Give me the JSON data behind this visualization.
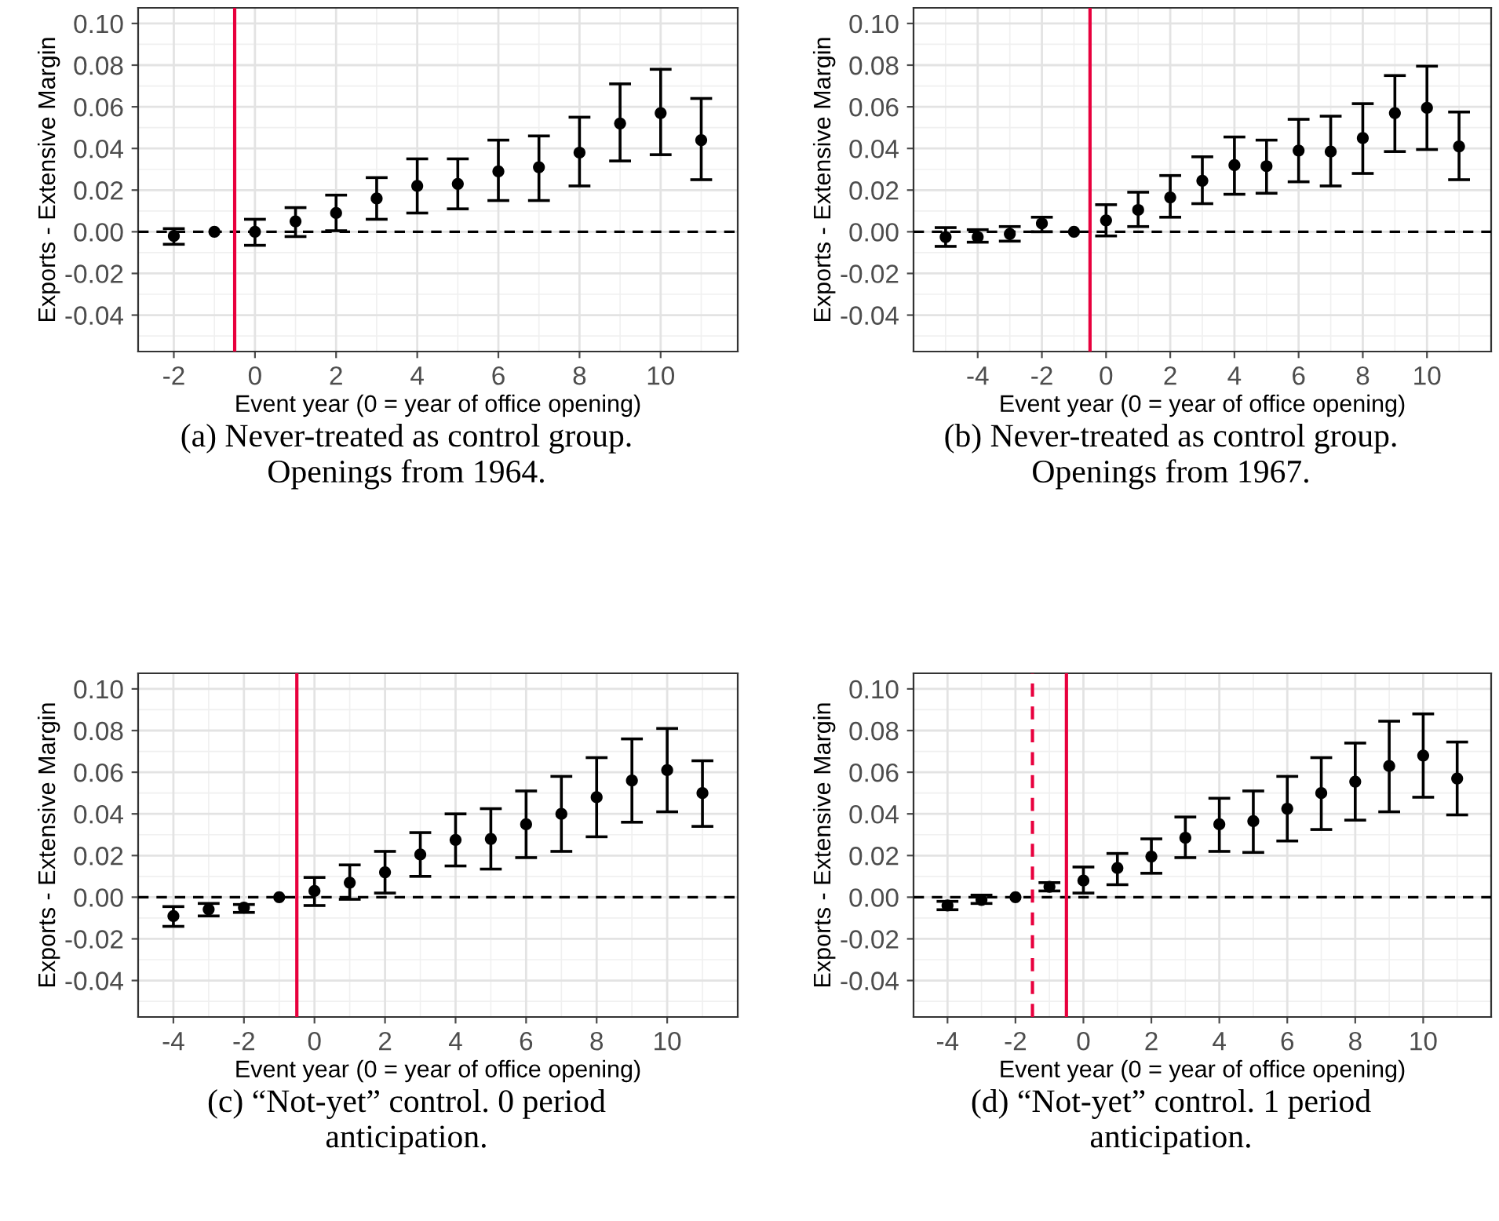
{
  "chart_data": [
    {
      "type": "scatter",
      "title": "(a) Never-treated as control group.\nOpenings from 1964.",
      "xlabel": "Event year (0 = year of office opening)",
      "ylabel": "Exports - Extensive Margin",
      "color": "#000000",
      "marker": "circle",
      "grid": true,
      "x": [
        -2,
        -1,
        0,
        1,
        2,
        3,
        4,
        5,
        6,
        7,
        8,
        9,
        10,
        11
      ],
      "values": [
        -0.002,
        0,
        0,
        0.005,
        0.009,
        0.016,
        0.022,
        0.023,
        0.029,
        0.031,
        0.038,
        0.052,
        0.057,
        0.044
      ],
      "errors": [
        [
          -0.006,
          0.0015
        ],
        null,
        [
          -0.0065,
          0.006
        ],
        [
          -0.0023,
          0.0116
        ],
        [
          0.0005,
          0.0176
        ],
        [
          0.006,
          0.026
        ],
        [
          0.009,
          0.035
        ],
        [
          0.011,
          0.035
        ],
        [
          0.015,
          0.044
        ],
        [
          0.015,
          0.046
        ],
        [
          0.022,
          0.055
        ],
        [
          0.034,
          0.071
        ],
        [
          0.037,
          0.078
        ],
        [
          0.025,
          0.064
        ]
      ],
      "xlim": [
        -2.88,
        11.9
      ],
      "xticks": [
        -2,
        0,
        2,
        4,
        6,
        8,
        10
      ],
      "ylim": [
        -0.0575,
        0.1075
      ],
      "yticks": [
        {
          "value": -0.04,
          "label": "-0.04"
        },
        {
          "value": -0.02,
          "label": "-0.02"
        },
        {
          "value": 0,
          "label": "0.00"
        },
        {
          "value": 0.02,
          "label": "0.02"
        },
        {
          "value": 0.04,
          "label": "0.04"
        },
        {
          "value": 0.06,
          "label": "0.06"
        },
        {
          "value": 0.08,
          "label": "0.08"
        },
        {
          "value": 0.1,
          "label": "0.10"
        }
      ],
      "ref_lines": [
        {
          "axis": "y",
          "value": 0,
          "color": "#000000",
          "line_style": "dashed"
        },
        {
          "axis": "x",
          "value": -0.5,
          "color": "#e8003d",
          "line_style": "solid"
        }
      ]
    },
    {
      "type": "scatter",
      "title": "(b) Never-treated as control group.\nOpenings from 1967.",
      "xlabel": "Event year (0 = year of office opening)",
      "ylabel": "Exports - Extensive Margin",
      "color": "#000000",
      "marker": "circle",
      "grid": true,
      "x": [
        -5,
        -4,
        -3,
        -2,
        -1,
        0,
        1,
        2,
        3,
        4,
        5,
        6,
        7,
        8,
        9,
        10,
        11
      ],
      "values": [
        -0.0025,
        -0.0025,
        -0.001,
        0.004,
        0,
        0.0055,
        0.0105,
        0.0165,
        0.0245,
        0.032,
        0.0315,
        0.039,
        0.0385,
        0.045,
        0.057,
        0.0595,
        0.041
      ],
      "errors": [
        [
          -0.007,
          0.002
        ],
        [
          -0.005,
          0.001
        ],
        [
          -0.0045,
          0.0025
        ],
        [
          0.0,
          0.007
        ],
        null,
        [
          -0.002,
          0.013
        ],
        [
          0.0025,
          0.019
        ],
        [
          0.007,
          0.027
        ],
        [
          0.0135,
          0.036
        ],
        [
          0.018,
          0.0455
        ],
        [
          0.0185,
          0.044
        ],
        [
          0.024,
          0.054
        ],
        [
          0.022,
          0.0555
        ],
        [
          0.028,
          0.0615
        ],
        [
          0.0385,
          0.075
        ],
        [
          0.0395,
          0.0795
        ],
        [
          0.025,
          0.0575
        ]
      ],
      "xlim": [
        -6.0,
        12.0
      ],
      "xticks": [
        -4,
        -2,
        0,
        2,
        4,
        6,
        8,
        10
      ],
      "ylim": [
        -0.0575,
        0.1075
      ],
      "yticks": [
        {
          "value": -0.04,
          "label": "-0.04"
        },
        {
          "value": -0.02,
          "label": "-0.02"
        },
        {
          "value": 0,
          "label": "0.00"
        },
        {
          "value": 0.02,
          "label": "0.02"
        },
        {
          "value": 0.04,
          "label": "0.04"
        },
        {
          "value": 0.06,
          "label": "0.06"
        },
        {
          "value": 0.08,
          "label": "0.08"
        },
        {
          "value": 0.1,
          "label": "0.10"
        }
      ],
      "ref_lines": [
        {
          "axis": "y",
          "value": 0,
          "color": "#000000",
          "line_style": "dashed"
        },
        {
          "axis": "x",
          "value": -0.5,
          "color": "#e8003d",
          "line_style": "solid"
        }
      ]
    },
    {
      "type": "scatter",
      "title": "(c) “Not-yet” control. 0 period\nanticipation.",
      "xlabel": "Event year (0 = year of office opening)",
      "ylabel": "Exports - Extensive Margin",
      "color": "#000000",
      "marker": "circle",
      "grid": true,
      "x": [
        -4,
        -3,
        -2,
        -1,
        0,
        1,
        2,
        3,
        4,
        5,
        6,
        7,
        8,
        9,
        10,
        11
      ],
      "values": [
        -0.009,
        -0.0058,
        -0.005,
        0,
        0.003,
        0.007,
        0.012,
        0.0205,
        0.0275,
        0.028,
        0.035,
        0.04,
        0.048,
        0.056,
        0.061,
        0.05
      ],
      "errors": [
        [
          -0.014,
          -0.0045
        ],
        [
          -0.009,
          -0.003
        ],
        [
          -0.0073,
          -0.0035
        ],
        null,
        [
          -0.004,
          0.0095
        ],
        [
          -0.001,
          0.0155
        ],
        [
          0.002,
          0.022
        ],
        [
          0.01,
          0.031
        ],
        [
          0.015,
          0.04
        ],
        [
          0.0135,
          0.0425
        ],
        [
          0.019,
          0.051
        ],
        [
          0.022,
          0.058
        ],
        [
          0.029,
          0.067
        ],
        [
          0.036,
          0.076
        ],
        [
          0.041,
          0.081
        ],
        [
          0.034,
          0.0655
        ]
      ],
      "xlim": [
        -5.0,
        12.0
      ],
      "xticks": [
        -4,
        -2,
        0,
        2,
        4,
        6,
        8,
        10
      ],
      "ylim": [
        -0.0575,
        0.1075
      ],
      "yticks": [
        {
          "value": -0.04,
          "label": "-0.04"
        },
        {
          "value": -0.02,
          "label": "-0.02"
        },
        {
          "value": 0,
          "label": "0.00"
        },
        {
          "value": 0.02,
          "label": "0.02"
        },
        {
          "value": 0.04,
          "label": "0.04"
        },
        {
          "value": 0.06,
          "label": "0.06"
        },
        {
          "value": 0.08,
          "label": "0.08"
        },
        {
          "value": 0.1,
          "label": "0.10"
        }
      ],
      "ref_lines": [
        {
          "axis": "y",
          "value": 0,
          "color": "#000000",
          "line_style": "dashed"
        },
        {
          "axis": "x",
          "value": -0.5,
          "color": "#e8003d",
          "line_style": "solid"
        }
      ]
    },
    {
      "type": "scatter",
      "title": "(d) “Not-yet” control. 1 period\nanticipation.",
      "xlabel": "Event year (0 = year of office opening)",
      "ylabel": "Exports - Extensive Margin",
      "color": "#000000",
      "marker": "circle",
      "grid": true,
      "x": [
        -4,
        -3,
        -2,
        -1,
        0,
        1,
        2,
        3,
        4,
        5,
        6,
        7,
        8,
        9,
        10,
        11
      ],
      "values": [
        -0.004,
        -0.0013,
        0,
        0.005,
        0.008,
        0.014,
        0.0195,
        0.0285,
        0.035,
        0.0365,
        0.0425,
        0.05,
        0.0555,
        0.063,
        0.068,
        0.057
      ],
      "errors": [
        [
          -0.006,
          -0.002
        ],
        [
          -0.003,
          0.001
        ],
        null,
        [
          0.003,
          0.007
        ],
        [
          0.002,
          0.0145
        ],
        [
          0.006,
          0.021
        ],
        [
          0.0115,
          0.028
        ],
        [
          0.019,
          0.0385
        ],
        [
          0.022,
          0.0475
        ],
        [
          0.0215,
          0.051
        ],
        [
          0.027,
          0.058
        ],
        [
          0.0325,
          0.067
        ],
        [
          0.037,
          0.074
        ],
        [
          0.041,
          0.0845
        ],
        [
          0.048,
          0.088
        ],
        [
          0.0395,
          0.0745
        ]
      ],
      "xlim": [
        -5.0,
        12.0
      ],
      "xticks": [
        -4,
        -2,
        0,
        2,
        4,
        6,
        8,
        10
      ],
      "ylim": [
        -0.0575,
        0.1075
      ],
      "yticks": [
        {
          "value": -0.04,
          "label": "-0.04"
        },
        {
          "value": -0.02,
          "label": "-0.02"
        },
        {
          "value": 0,
          "label": "0.00"
        },
        {
          "value": 0.02,
          "label": "0.02"
        },
        {
          "value": 0.04,
          "label": "0.04"
        },
        {
          "value": 0.06,
          "label": "0.06"
        },
        {
          "value": 0.08,
          "label": "0.08"
        },
        {
          "value": 0.1,
          "label": "0.10"
        }
      ],
      "ref_lines": [
        {
          "axis": "y",
          "value": 0,
          "color": "#000000",
          "line_style": "dashed"
        },
        {
          "axis": "x",
          "value": -1.5,
          "color": "#e8003d",
          "line_style": "dashed"
        },
        {
          "axis": "x",
          "value": -0.5,
          "color": "#e8003d",
          "line_style": "solid"
        }
      ]
    }
  ]
}
